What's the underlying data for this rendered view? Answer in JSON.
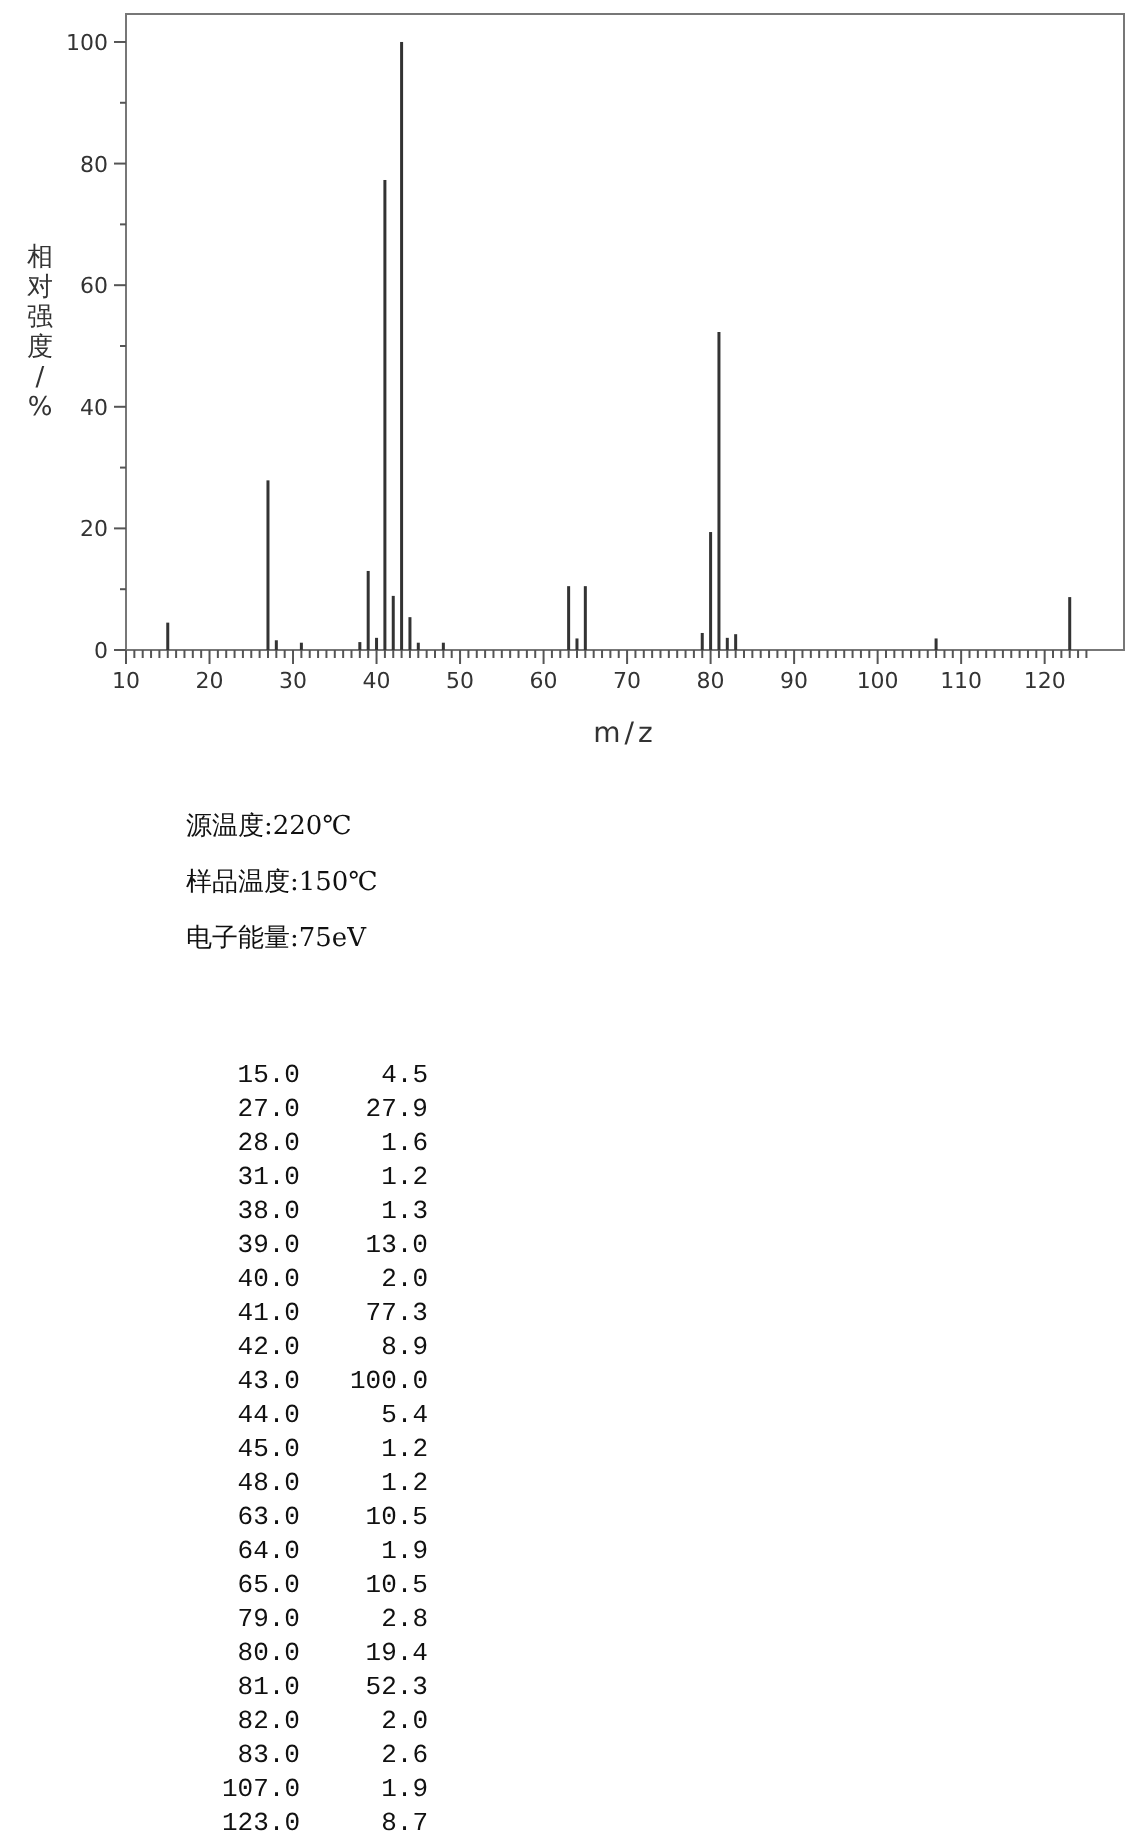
{
  "chart_data": {
    "type": "bar",
    "xlabel": "m/z",
    "ylabel": "相对强度/%",
    "color": "#333333",
    "x": [
      15,
      27,
      28,
      31,
      38,
      39,
      40,
      41,
      42,
      43,
      44,
      45,
      48,
      63,
      64,
      65,
      79,
      80,
      81,
      82,
      83,
      107,
      123
    ],
    "values": [
      4.5,
      27.9,
      1.6,
      1.2,
      1.3,
      13.0,
      2.0,
      77.3,
      8.9,
      100.0,
      5.4,
      1.2,
      1.2,
      10.5,
      1.9,
      10.5,
      2.8,
      19.4,
      52.3,
      2.0,
      2.6,
      1.9,
      8.7
    ],
    "xlim": [
      10,
      129.5
    ],
    "ylim": [
      0,
      104.6
    ],
    "xticks": [
      10,
      {
        "value": 11,
        "label": null
      },
      {
        "value": 12,
        "label": null
      },
      {
        "value": 13,
        "label": null
      },
      {
        "value": 14,
        "label": null
      },
      {
        "value": 15,
        "label": null
      },
      {
        "value": 16,
        "label": null
      },
      {
        "value": 17,
        "label": null
      },
      {
        "value": 18,
        "label": null
      },
      {
        "value": 19,
        "label": null
      },
      20,
      {
        "value": 21,
        "label": null
      },
      {
        "value": 22,
        "label": null
      },
      {
        "value": 23,
        "label": null
      },
      {
        "value": 24,
        "label": null
      },
      {
        "value": 25,
        "label": null
      },
      {
        "value": 26,
        "label": null
      },
      {
        "value": 27,
        "label": null
      },
      {
        "value": 28,
        "label": null
      },
      {
        "value": 29,
        "label": null
      },
      30,
      {
        "value": 31,
        "label": null
      },
      {
        "value": 32,
        "label": null
      },
      {
        "value": 33,
        "label": null
      },
      {
        "value": 34,
        "label": null
      },
      {
        "value": 35,
        "label": null
      },
      {
        "value": 36,
        "label": null
      },
      {
        "value": 37,
        "label": null
      },
      {
        "value": 38,
        "label": null
      },
      {
        "value": 39,
        "label": null
      },
      40,
      {
        "value": 41,
        "label": null
      },
      {
        "value": 42,
        "label": null
      },
      {
        "value": 43,
        "label": null
      },
      {
        "value": 44,
        "label": null
      },
      {
        "value": 45,
        "label": null
      },
      {
        "value": 46,
        "label": null
      },
      {
        "value": 47,
        "label": null
      },
      {
        "value": 48,
        "label": null
      },
      {
        "value": 49,
        "label": null
      },
      50,
      {
        "value": 51,
        "label": null
      },
      {
        "value": 52,
        "label": null
      },
      {
        "value": 53,
        "label": null
      },
      {
        "value": 54,
        "label": null
      },
      {
        "value": 55,
        "label": null
      },
      {
        "value": 56,
        "label": null
      },
      {
        "value": 57,
        "label": null
      },
      {
        "value": 58,
        "label": null
      },
      {
        "value": 59,
        "label": null
      },
      60,
      {
        "value": 61,
        "label": null
      },
      {
        "value": 62,
        "label": null
      },
      {
        "value": 63,
        "label": null
      },
      {
        "value": 64,
        "label": null
      },
      {
        "value": 65,
        "label": null
      },
      {
        "value": 66,
        "label": null
      },
      {
        "value": 67,
        "label": null
      },
      {
        "value": 68,
        "label": null
      },
      {
        "value": 69,
        "label": null
      },
      70,
      {
        "value": 71,
        "label": null
      },
      {
        "value": 72,
        "label": null
      },
      {
        "value": 73,
        "label": null
      },
      {
        "value": 74,
        "label": null
      },
      {
        "value": 75,
        "label": null
      },
      {
        "value": 76,
        "label": null
      },
      {
        "value": 77,
        "label": null
      },
      {
        "value": 78,
        "label": null
      },
      {
        "value": 79,
        "label": null
      },
      80,
      {
        "value": 81,
        "label": null
      },
      {
        "value": 82,
        "label": null
      },
      {
        "value": 83,
        "label": null
      },
      {
        "value": 84,
        "label": null
      },
      {
        "value": 85,
        "label": null
      },
      {
        "value": 86,
        "label": null
      },
      {
        "value": 87,
        "label": null
      },
      {
        "value": 88,
        "label": null
      },
      {
        "value": 89,
        "label": null
      },
      90,
      {
        "value": 91,
        "label": null
      },
      {
        "value": 92,
        "label": null
      },
      {
        "value": 93,
        "label": null
      },
      {
        "value": 94,
        "label": null
      },
      {
        "value": 95,
        "label": null
      },
      {
        "value": 96,
        "label": null
      },
      {
        "value": 97,
        "label": null
      },
      {
        "value": 98,
        "label": null
      },
      {
        "value": 99,
        "label": null
      },
      100,
      {
        "value": 101,
        "label": null
      },
      {
        "value": 102,
        "label": null
      },
      {
        "value": 103,
        "label": null
      },
      {
        "value": 104,
        "label": null
      },
      {
        "value": 105,
        "label": null
      },
      {
        "value": 106,
        "label": null
      },
      {
        "value": 107,
        "label": null
      },
      {
        "value": 108,
        "label": null
      },
      {
        "value": 109,
        "label": null
      },
      110,
      {
        "value": 111,
        "label": null
      },
      {
        "value": 112,
        "label": null
      },
      {
        "value": 113,
        "label": null
      },
      {
        "value": 114,
        "label": null
      },
      {
        "value": 115,
        "label": null
      },
      {
        "value": 116,
        "label": null
      },
      {
        "value": 117,
        "label": null
      },
      {
        "value": 118,
        "label": null
      },
      {
        "value": 119,
        "label": null
      },
      120,
      {
        "value": 121,
        "label": null
      },
      {
        "value": 122,
        "label": null
      },
      {
        "value": 123,
        "label": null
      },
      {
        "value": 124,
        "label": null
      },
      {
        "value": 125,
        "label": null
      }
    ],
    "yticks": [
      0,
      {
        "value": 10,
        "label": null
      },
      20,
      {
        "value": 30,
        "label": null
      },
      40,
      {
        "value": 50,
        "label": null
      },
      60,
      {
        "value": 70,
        "label": null
      },
      80,
      {
        "value": 90,
        "label": null
      },
      100
    ],
    "annotations": [
      "源温度:220℃",
      "样品温度:150℃",
      "电子能量:75eV",
      "15.0",
      "4.5",
      "27.0",
      "27.9",
      "28.0",
      "1.6",
      "31.0",
      "1.2",
      "38.0",
      "1.3",
      "39.0",
      "13.0",
      "40.0",
      "2.0",
      "41.0",
      "77.3",
      "42.0",
      "8.9",
      "43.0",
      "100.0",
      "44.0",
      "5.4",
      "45.0",
      "1.2",
      "48.0",
      "1.2",
      "63.0",
      "10.5",
      "64.0",
      "1.9",
      "65.0",
      "10.5",
      "79.0",
      "2.8",
      "80.0",
      "19.4",
      "81.0",
      "52.3",
      "82.0",
      "2.0",
      "83.0",
      "2.6",
      "107.0",
      "1.9",
      "123.0",
      "8.7"
    ]
  }
}
